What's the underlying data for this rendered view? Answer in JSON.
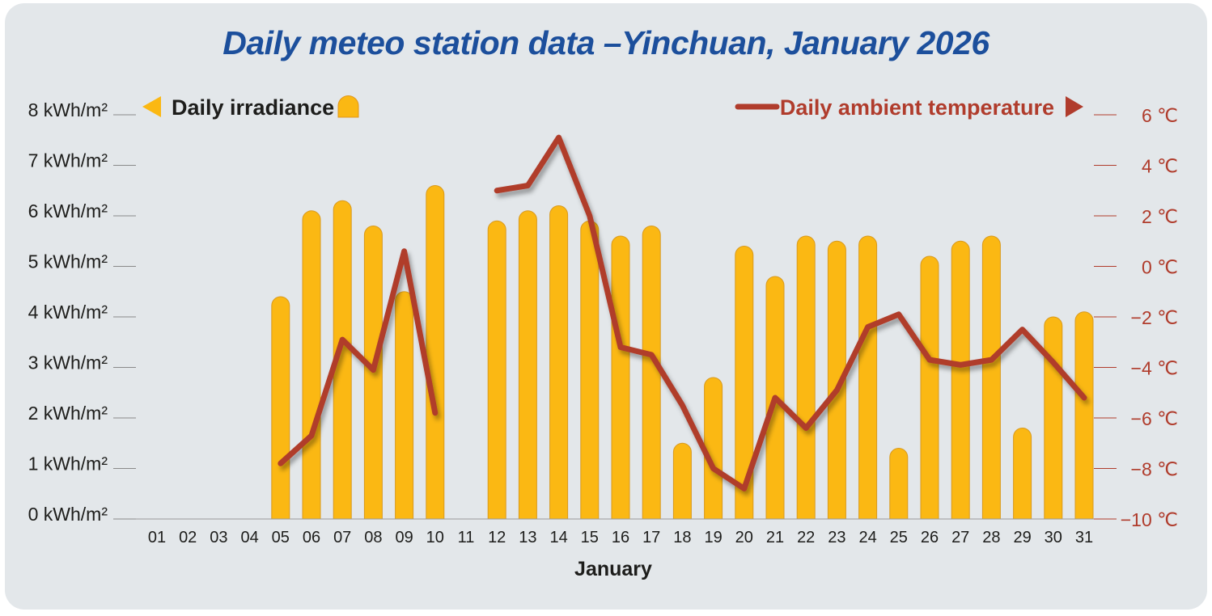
{
  "title": "Daily meteo station data –Yinchuan, January 2026",
  "chart_data": {
    "type": "bar",
    "categories": [
      "01",
      "02",
      "03",
      "04",
      "05",
      "06",
      "07",
      "08",
      "09",
      "10",
      "11",
      "12",
      "13",
      "14",
      "15",
      "16",
      "17",
      "18",
      "19",
      "20",
      "21",
      "22",
      "23",
      "24",
      "25",
      "26",
      "27",
      "28",
      "29",
      "30",
      "31"
    ],
    "xlabel": "January",
    "y_left": {
      "label": "Daily irradiance",
      "unit": "kWh/m²",
      "ylim": [
        0,
        8
      ],
      "ticks": [
        "0 kWh/m²",
        "1 kWh/m²",
        "2 kWh/m²",
        "3 kWh/m²",
        "4 kWh/m²",
        "5 kWh/m²",
        "6 kWh/m²",
        "7 kWh/m²",
        "8 kWh/m²"
      ]
    },
    "y_right": {
      "label": "Daily ambient temperature",
      "unit": "℃",
      "ylim": [
        -10,
        6
      ],
      "ticks": [
        "−10 ℃",
        "−8 ℃",
        "−6 ℃",
        "−4 ℃",
        "−2 ℃",
        "0 ℃",
        "2 ℃",
        "4 ℃",
        "6 ℃"
      ]
    },
    "series": [
      {
        "name": "Daily irradiance",
        "type": "bar",
        "axis": "left",
        "color": "#fbb813",
        "values": [
          null,
          null,
          null,
          null,
          4.4,
          6.1,
          6.3,
          5.8,
          4.5,
          6.6,
          null,
          5.9,
          6.1,
          6.2,
          5.9,
          5.6,
          5.8,
          1.5,
          2.8,
          5.4,
          4.8,
          5.6,
          5.5,
          5.6,
          1.4,
          5.2,
          5.5,
          5.6,
          1.8,
          4.0,
          4.1
        ]
      },
      {
        "name": "Daily ambient temperature",
        "type": "line",
        "axis": "right",
        "color": "#b03c2c",
        "values": [
          null,
          null,
          null,
          null,
          -7.8,
          -6.7,
          -2.9,
          -4.1,
          0.6,
          -5.8,
          null,
          3.0,
          3.2,
          5.1,
          2.0,
          -3.2,
          -3.5,
          -5.5,
          -8.0,
          -8.8,
          -5.2,
          -6.4,
          -4.9,
          -2.4,
          -1.9,
          -3.7,
          -3.9,
          -3.7,
          -2.5,
          -3.8,
          -5.2
        ]
      }
    ],
    "legend": "top",
    "grid": false
  }
}
